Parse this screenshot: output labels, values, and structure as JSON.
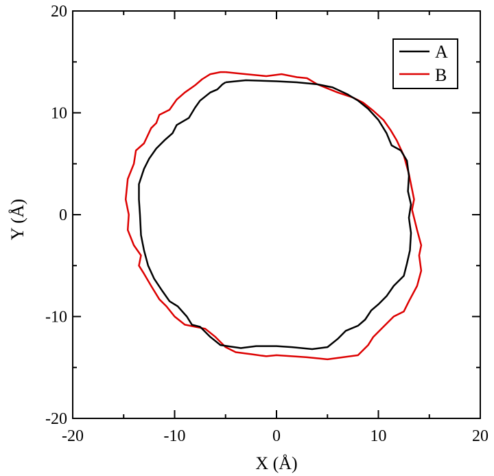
{
  "chart_data": {
    "type": "line",
    "title": "",
    "xlabel": "X (Å)",
    "ylabel": "Y (Å)",
    "xlim": [
      -20,
      20
    ],
    "ylim": [
      -20,
      20
    ],
    "x_ticks": [
      -20,
      -10,
      0,
      10,
      20
    ],
    "y_ticks": [
      -20,
      -10,
      0,
      10,
      20
    ],
    "x_tick_labels": [
      "-20",
      "-10",
      "0",
      "10",
      "20"
    ],
    "y_tick_labels": [
      "-20",
      "-10",
      "0",
      "10",
      "20"
    ],
    "grid": false,
    "legend_position": "top-right",
    "series": [
      {
        "name": "A",
        "color": "#000000",
        "points": [
          [
            -5.0,
            13.0
          ],
          [
            -3.0,
            13.2
          ],
          [
            0.0,
            13.1
          ],
          [
            2.0,
            13.0
          ],
          [
            4.0,
            12.8
          ],
          [
            5.5,
            12.5
          ],
          [
            7.0,
            11.8
          ],
          [
            8.0,
            11.2
          ],
          [
            9.0,
            10.4
          ],
          [
            10.0,
            9.3
          ],
          [
            10.8,
            8.0
          ],
          [
            11.3,
            6.8
          ],
          [
            12.2,
            6.3
          ],
          [
            12.8,
            5.3
          ],
          [
            13.0,
            3.8
          ],
          [
            12.9,
            2.3
          ],
          [
            13.2,
            1.0
          ],
          [
            13.0,
            -0.3
          ],
          [
            13.2,
            -1.8
          ],
          [
            13.1,
            -3.5
          ],
          [
            12.8,
            -4.8
          ],
          [
            12.5,
            -6.0
          ],
          [
            11.5,
            -7.0
          ],
          [
            10.8,
            -8.0
          ],
          [
            10.0,
            -8.8
          ],
          [
            9.3,
            -9.4
          ],
          [
            8.7,
            -10.3
          ],
          [
            8.0,
            -10.9
          ],
          [
            6.8,
            -11.4
          ],
          [
            6.0,
            -12.2
          ],
          [
            5.0,
            -13.0
          ],
          [
            3.5,
            -13.2
          ],
          [
            1.5,
            -13.0
          ],
          [
            0.0,
            -12.9
          ],
          [
            -2.0,
            -12.9
          ],
          [
            -3.5,
            -13.1
          ],
          [
            -5.5,
            -12.8
          ],
          [
            -6.5,
            -12.0
          ],
          [
            -7.5,
            -11.0
          ],
          [
            -8.3,
            -10.8
          ],
          [
            -8.8,
            -10.0
          ],
          [
            -9.7,
            -9.0
          ],
          [
            -10.5,
            -8.5
          ],
          [
            -11.2,
            -7.5
          ],
          [
            -12.0,
            -6.3
          ],
          [
            -12.6,
            -5.0
          ],
          [
            -13.0,
            -3.5
          ],
          [
            -13.3,
            -2.0
          ],
          [
            -13.4,
            0.0
          ],
          [
            -13.5,
            1.5
          ],
          [
            -13.5,
            3.0
          ],
          [
            -13.0,
            4.5
          ],
          [
            -12.5,
            5.5
          ],
          [
            -11.8,
            6.5
          ],
          [
            -11.0,
            7.3
          ],
          [
            -10.2,
            8.0
          ],
          [
            -9.8,
            8.8
          ],
          [
            -8.6,
            9.5
          ],
          [
            -8.0,
            10.5
          ],
          [
            -7.5,
            11.2
          ],
          [
            -6.5,
            12.0
          ],
          [
            -5.8,
            12.3
          ],
          [
            -5.3,
            12.8
          ],
          [
            -5.0,
            13.0
          ]
        ]
      },
      {
        "name": "B",
        "color": "#dd0000",
        "points": [
          [
            -5.0,
            14.0
          ],
          [
            -3.0,
            13.8
          ],
          [
            -1.0,
            13.6
          ],
          [
            0.5,
            13.8
          ],
          [
            2.0,
            13.5
          ],
          [
            3.0,
            13.4
          ],
          [
            4.0,
            12.8
          ],
          [
            6.0,
            12.0
          ],
          [
            7.5,
            11.5
          ],
          [
            8.5,
            11.0
          ],
          [
            9.5,
            10.2
          ],
          [
            10.5,
            9.3
          ],
          [
            11.2,
            8.3
          ],
          [
            11.8,
            7.3
          ],
          [
            12.5,
            5.8
          ],
          [
            13.0,
            4.0
          ],
          [
            13.5,
            1.5
          ],
          [
            13.3,
            0.5
          ],
          [
            13.8,
            -1.5
          ],
          [
            14.2,
            -3.0
          ],
          [
            14.0,
            -4.0
          ],
          [
            14.2,
            -5.5
          ],
          [
            13.8,
            -7.0
          ],
          [
            13.0,
            -8.5
          ],
          [
            12.5,
            -9.5
          ],
          [
            11.5,
            -10.0
          ],
          [
            10.5,
            -11.0
          ],
          [
            9.5,
            -12.0
          ],
          [
            9.0,
            -12.8
          ],
          [
            8.0,
            -13.8
          ],
          [
            6.5,
            -14.0
          ],
          [
            5.0,
            -14.2
          ],
          [
            3.0,
            -14.0
          ],
          [
            1.5,
            -13.9
          ],
          [
            0.0,
            -13.8
          ],
          [
            -1.0,
            -13.9
          ],
          [
            -2.5,
            -13.7
          ],
          [
            -4.0,
            -13.5
          ],
          [
            -5.0,
            -13.0
          ],
          [
            -6.0,
            -12.0
          ],
          [
            -7.0,
            -11.2
          ],
          [
            -8.0,
            -11.0
          ],
          [
            -9.0,
            -10.8
          ],
          [
            -10.0,
            -10.0
          ],
          [
            -10.8,
            -9.0
          ],
          [
            -11.5,
            -8.3
          ],
          [
            -12.3,
            -7.0
          ],
          [
            -13.0,
            -5.8
          ],
          [
            -13.5,
            -5.0
          ],
          [
            -13.3,
            -4.0
          ],
          [
            -14.0,
            -3.0
          ],
          [
            -14.6,
            -1.5
          ],
          [
            -14.5,
            0.0
          ],
          [
            -14.8,
            1.5
          ],
          [
            -14.6,
            3.5
          ],
          [
            -14.0,
            5.0
          ],
          [
            -13.8,
            6.3
          ],
          [
            -13.0,
            7.0
          ],
          [
            -12.3,
            8.5
          ],
          [
            -11.8,
            9.0
          ],
          [
            -11.5,
            9.8
          ],
          [
            -10.5,
            10.3
          ],
          [
            -9.8,
            11.3
          ],
          [
            -9.0,
            12.0
          ],
          [
            -8.0,
            12.7
          ],
          [
            -7.3,
            13.3
          ],
          [
            -6.5,
            13.8
          ],
          [
            -5.5,
            14.0
          ],
          [
            -5.0,
            14.0
          ]
        ]
      }
    ]
  }
}
